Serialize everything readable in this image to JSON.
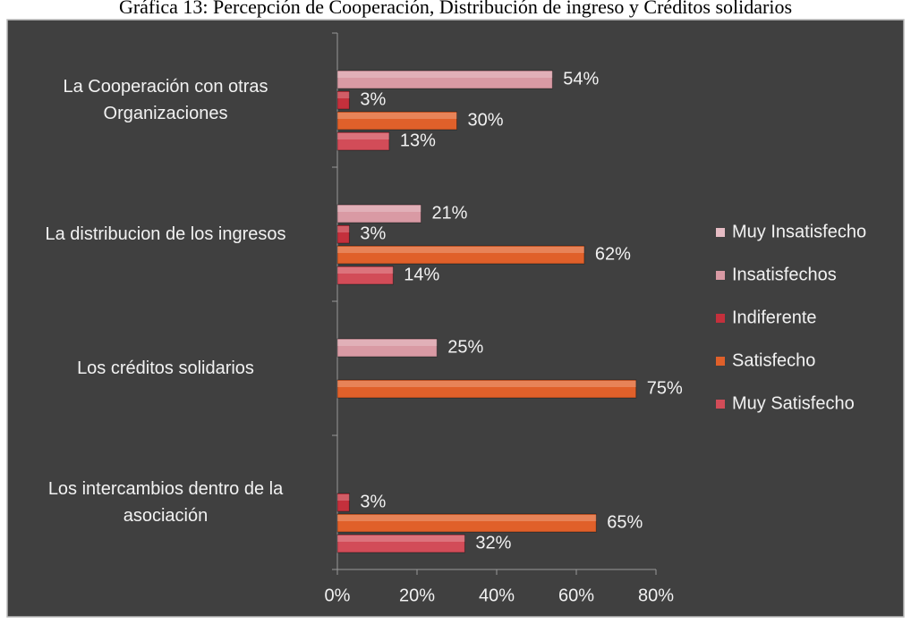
{
  "chart_data": {
    "type": "hbar",
    "title": "Gráfica 13: Percepción de Cooperación, Distribución de ingreso y Créditos solidarios",
    "categories": [
      "La Cooperación con otras\nOrganizaciones",
      "La distribucion de los ingresos",
      "Los créditos solidarios",
      "Los  intercambios dentro de la\nasociación"
    ],
    "series": [
      {
        "name": "Muy Insatisfecho",
        "color": "#e6bcc4",
        "values": [
          null,
          null,
          null,
          null
        ],
        "value_labels": [
          null,
          null,
          null,
          null
        ]
      },
      {
        "name": "Insatisfechos",
        "color": "#d99aa4",
        "values": [
          54,
          21,
          25,
          null
        ],
        "value_labels": [
          "54%",
          "21%",
          "25%",
          null
        ]
      },
      {
        "name": "Indiferente",
        "color": "#c4303c",
        "values": [
          3,
          3,
          null,
          3
        ],
        "value_labels": [
          "3%",
          "3%",
          null,
          "3%"
        ]
      },
      {
        "name": "Satisfecho",
        "color": "#e0602a",
        "values": [
          30,
          62,
          75,
          65
        ],
        "value_labels": [
          "30%",
          "62%",
          "75%",
          "65%"
        ]
      },
      {
        "name": "Muy Satisfecho",
        "color": "#d24c58",
        "values": [
          13,
          14,
          null,
          32
        ],
        "value_labels": [
          "13%",
          "14%",
          null,
          "32%"
        ]
      }
    ],
    "xlim": [
      0,
      80
    ],
    "xticks": [
      {
        "value": 0,
        "label": "0%"
      },
      {
        "value": 20,
        "label": "20%"
      },
      {
        "value": 40,
        "label": "40%"
      },
      {
        "value": 60,
        "label": "60%"
      },
      {
        "value": 80,
        "label": "80%"
      }
    ],
    "legend": "right"
  }
}
